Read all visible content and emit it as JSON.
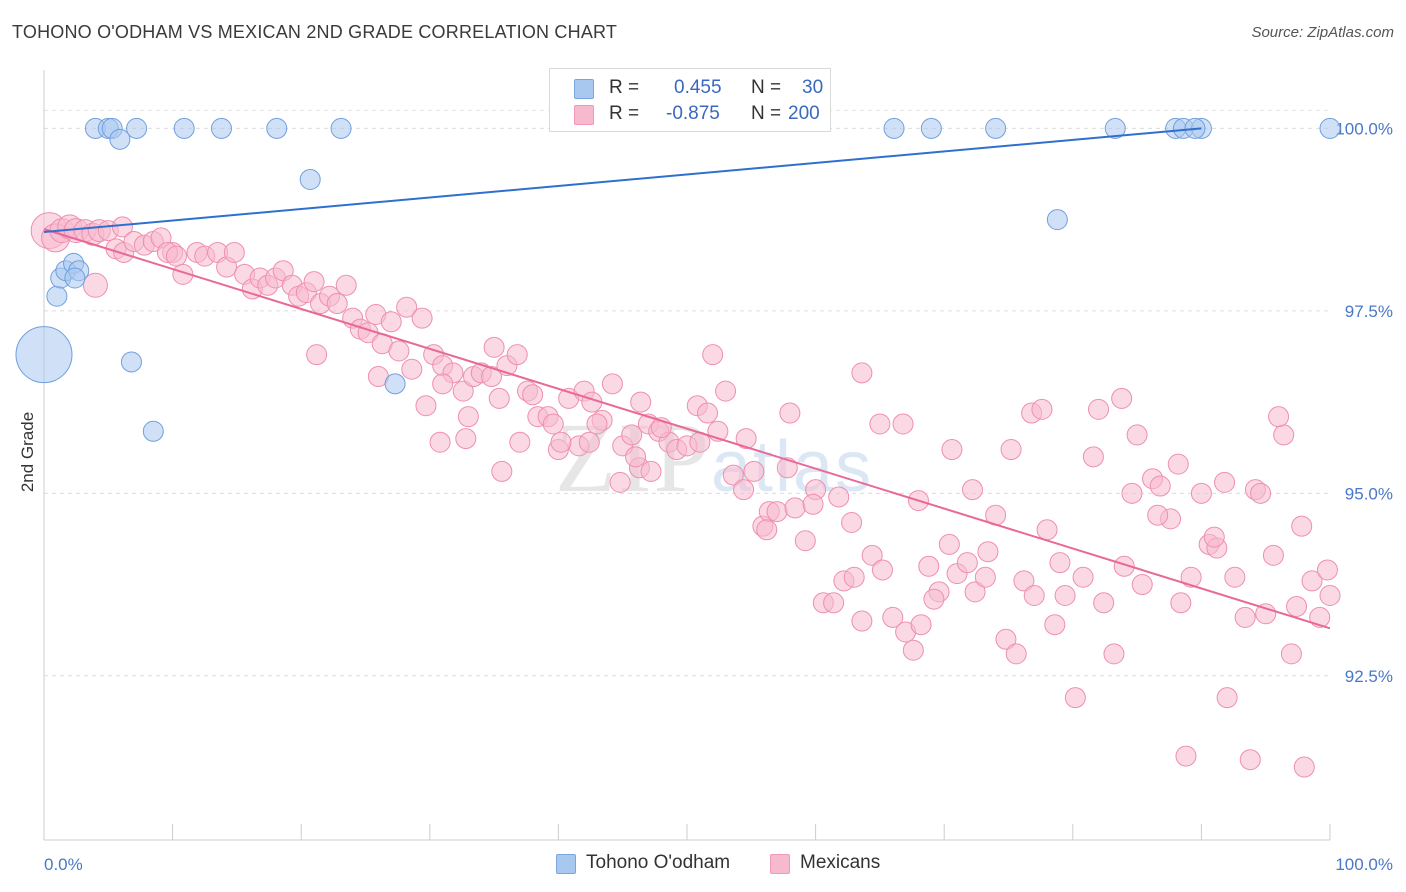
{
  "title": "TOHONO O'ODHAM VS MEXICAN 2ND GRADE CORRELATION CHART",
  "source": "Source: ZipAtlas.com",
  "watermark": {
    "zip": "ZIP",
    "atlas": "atlas"
  },
  "legend": {
    "rows": [
      {
        "r_label": "R =",
        "r_value": "0.455",
        "n_label": "N =",
        "n_value": "30",
        "color": "#a9c8f0"
      },
      {
        "r_label": "R =",
        "r_value": "-0.875",
        "n_label": "N =",
        "n_value": "200",
        "color": "#f7b9cd"
      }
    ]
  },
  "bottom_legend": [
    {
      "label": "Tohono O'odham",
      "color": "#a9c8f0"
    },
    {
      "label": "Mexicans",
      "color": "#f7b9cd"
    }
  ],
  "chart_data": {
    "type": "scatter",
    "title": "TOHONO O'ODHAM VS MEXICAN 2ND GRADE CORRELATION CHART",
    "xlabel": "",
    "ylabel": "2nd Grade",
    "xlim": [
      0,
      100
    ],
    "ylim": [
      90.25,
      100.8
    ],
    "x_tick_labels": [
      "0.0%",
      "100.0%"
    ],
    "y_ticks": [
      92.5,
      95.0,
      97.5,
      100.0
    ],
    "y_tick_labels": [
      "92.5%",
      "95.0%",
      "97.5%",
      "100.0%"
    ],
    "grid": true,
    "series": [
      {
        "name": "Tohono O'odham",
        "color": "#a9c8f0",
        "stroke": "#6f9fdd",
        "trend_color": "#2f6fce",
        "trend": {
          "x": [
            0,
            90
          ],
          "y": [
            98.58,
            100.0
          ]
        },
        "points": [
          [
            0.0,
            96.9,
            28
          ],
          [
            1.0,
            97.7,
            10
          ],
          [
            1.3,
            97.95,
            10
          ],
          [
            1.7,
            98.05,
            10
          ],
          [
            2.3,
            98.15,
            10
          ],
          [
            2.7,
            98.05,
            10
          ],
          [
            2.4,
            97.95,
            10
          ],
          [
            6.8,
            96.8,
            10
          ],
          [
            8.5,
            95.85,
            10
          ],
          [
            4.0,
            100.0,
            10
          ],
          [
            5.0,
            100.0,
            10
          ],
          [
            5.3,
            100.0,
            10
          ],
          [
            7.2,
            100.0,
            10
          ],
          [
            5.9,
            99.85,
            10
          ],
          [
            10.9,
            100.0,
            10
          ],
          [
            13.8,
            100.0,
            10
          ],
          [
            18.1,
            100.0,
            10
          ],
          [
            20.7,
            99.3,
            10
          ],
          [
            23.1,
            100.0,
            10
          ],
          [
            27.3,
            96.5,
            10
          ],
          [
            66.1,
            100.0,
            10
          ],
          [
            69.0,
            100.0,
            10
          ],
          [
            74.0,
            100.0,
            10
          ],
          [
            83.3,
            100.0,
            10
          ],
          [
            88.0,
            100.0,
            10
          ],
          [
            88.6,
            100.0,
            10
          ],
          [
            90.0,
            100.0,
            10
          ],
          [
            100.0,
            100.0,
            10
          ],
          [
            78.8,
            98.75,
            10
          ],
          [
            89.5,
            100.0,
            10
          ]
        ]
      },
      {
        "name": "Mexicans",
        "color": "#f7b9cd",
        "stroke": "#ee8fae",
        "trend_color": "#e8689a",
        "trend": {
          "x": [
            0,
            100
          ],
          "y": [
            98.62,
            93.15
          ]
        },
        "points": [
          [
            0.4,
            98.6,
            18
          ],
          [
            0.9,
            98.5,
            14
          ],
          [
            1.4,
            98.6,
            12
          ],
          [
            2.0,
            98.65,
            12
          ],
          [
            2.5,
            98.6,
            12
          ],
          [
            3.2,
            98.6,
            11
          ],
          [
            3.8,
            98.55,
            11
          ],
          [
            4.3,
            98.6,
            11
          ],
          [
            5.0,
            98.6,
            10
          ],
          [
            6.1,
            98.65,
            10
          ],
          [
            5.6,
            98.35,
            10
          ],
          [
            4.0,
            97.85,
            12
          ],
          [
            6.2,
            98.3,
            10
          ],
          [
            7.0,
            98.45,
            10
          ],
          [
            7.8,
            98.4,
            10
          ],
          [
            8.5,
            98.45,
            10
          ],
          [
            9.1,
            98.5,
            10
          ],
          [
            10.0,
            98.3,
            10
          ],
          [
            9.6,
            98.3,
            10
          ],
          [
            10.3,
            98.25,
            10
          ],
          [
            10.8,
            98.0,
            10
          ],
          [
            11.9,
            98.3,
            10
          ],
          [
            12.5,
            98.25,
            10
          ],
          [
            13.5,
            98.3,
            10
          ],
          [
            14.2,
            98.1,
            10
          ],
          [
            14.8,
            98.3,
            10
          ],
          [
            15.6,
            98.0,
            10
          ],
          [
            16.2,
            97.8,
            10
          ],
          [
            16.8,
            97.95,
            10
          ],
          [
            17.4,
            97.85,
            10
          ],
          [
            18.0,
            97.95,
            10
          ],
          [
            18.6,
            98.05,
            10
          ],
          [
            19.3,
            97.85,
            10
          ],
          [
            19.8,
            97.7,
            10
          ],
          [
            20.4,
            97.75,
            10
          ],
          [
            21.0,
            97.9,
            10
          ],
          [
            21.5,
            97.6,
            10
          ],
          [
            22.2,
            97.7,
            10
          ],
          [
            22.8,
            97.6,
            10
          ],
          [
            23.5,
            97.85,
            10
          ],
          [
            24.0,
            97.4,
            10
          ],
          [
            24.6,
            97.25,
            10
          ],
          [
            25.2,
            97.2,
            10
          ],
          [
            25.8,
            97.45,
            10
          ],
          [
            26.3,
            97.05,
            10
          ],
          [
            27.0,
            97.35,
            10
          ],
          [
            27.6,
            96.95,
            10
          ],
          [
            28.2,
            97.55,
            10
          ],
          [
            28.6,
            96.7,
            10
          ],
          [
            29.4,
            97.4,
            10
          ],
          [
            30.3,
            96.9,
            10
          ],
          [
            31.0,
            96.75,
            10
          ],
          [
            31.8,
            96.65,
            10
          ],
          [
            32.6,
            96.4,
            10
          ],
          [
            33.4,
            96.6,
            10
          ],
          [
            34.0,
            96.65,
            10
          ],
          [
            34.8,
            96.6,
            10
          ],
          [
            35.4,
            96.3,
            10
          ],
          [
            36.0,
            96.75,
            10
          ],
          [
            36.8,
            96.9,
            10
          ],
          [
            37.6,
            96.4,
            10
          ],
          [
            38.4,
            96.05,
            10
          ],
          [
            39.2,
            96.05,
            10
          ],
          [
            40.0,
            95.6,
            10
          ],
          [
            40.8,
            96.3,
            10
          ],
          [
            41.6,
            95.65,
            10
          ],
          [
            42.0,
            96.4,
            10
          ],
          [
            42.6,
            96.25,
            10
          ],
          [
            43.4,
            96.0,
            10
          ],
          [
            44.2,
            96.5,
            10
          ],
          [
            45.0,
            95.65,
            10
          ],
          [
            45.7,
            95.8,
            10
          ],
          [
            46.3,
            95.35,
            10
          ],
          [
            47.0,
            95.95,
            10
          ],
          [
            47.8,
            95.85,
            10
          ],
          [
            48.6,
            95.7,
            10
          ],
          [
            49.2,
            95.6,
            10
          ],
          [
            50.0,
            95.65,
            10
          ],
          [
            50.8,
            96.2,
            10
          ],
          [
            51.6,
            96.1,
            10
          ],
          [
            52.4,
            95.85,
            10
          ],
          [
            53.0,
            96.4,
            10
          ],
          [
            53.6,
            95.25,
            10
          ],
          [
            54.4,
            95.05,
            10
          ],
          [
            55.2,
            95.3,
            10
          ],
          [
            55.9,
            94.55,
            10
          ],
          [
            56.4,
            94.75,
            10
          ],
          [
            57.0,
            94.75,
            10
          ],
          [
            57.8,
            95.35,
            10
          ],
          [
            58.4,
            94.8,
            10
          ],
          [
            59.2,
            94.35,
            10
          ],
          [
            60.0,
            95.05,
            10
          ],
          [
            60.6,
            93.5,
            10
          ],
          [
            61.4,
            93.5,
            10
          ],
          [
            62.2,
            93.8,
            10
          ],
          [
            63.0,
            93.85,
            10
          ],
          [
            63.6,
            93.25,
            10
          ],
          [
            64.4,
            94.15,
            10
          ],
          [
            65.2,
            93.95,
            10
          ],
          [
            66.0,
            93.3,
            10
          ],
          [
            67.0,
            93.1,
            10
          ],
          [
            67.6,
            92.85,
            10
          ],
          [
            68.2,
            93.2,
            10
          ],
          [
            68.8,
            94.0,
            10
          ],
          [
            69.6,
            93.65,
            10
          ],
          [
            70.4,
            94.3,
            10
          ],
          [
            71.0,
            93.9,
            10
          ],
          [
            71.8,
            94.05,
            10
          ],
          [
            72.4,
            93.65,
            10
          ],
          [
            73.2,
            93.85,
            10
          ],
          [
            74.0,
            94.7,
            10
          ],
          [
            74.8,
            93.0,
            10
          ],
          [
            75.6,
            92.8,
            10
          ],
          [
            76.2,
            93.8,
            10
          ],
          [
            77.0,
            93.6,
            10
          ],
          [
            78.0,
            94.5,
            10
          ],
          [
            78.6,
            93.2,
            10
          ],
          [
            79.4,
            93.6,
            10
          ],
          [
            80.2,
            92.2,
            10
          ],
          [
            80.8,
            93.85,
            10
          ],
          [
            81.6,
            95.5,
            10
          ],
          [
            82.4,
            93.5,
            10
          ],
          [
            83.2,
            92.8,
            10
          ],
          [
            84.0,
            94.0,
            10
          ],
          [
            84.6,
            95.0,
            10
          ],
          [
            85.4,
            93.75,
            10
          ],
          [
            86.2,
            95.2,
            10
          ],
          [
            86.8,
            95.1,
            10
          ],
          [
            87.6,
            94.65,
            10
          ],
          [
            88.4,
            93.5,
            10
          ],
          [
            89.2,
            93.85,
            10
          ],
          [
            90.0,
            95.0,
            10
          ],
          [
            90.6,
            94.3,
            10
          ],
          [
            91.2,
            94.25,
            10
          ],
          [
            91.8,
            95.15,
            10
          ],
          [
            92.6,
            93.85,
            10
          ],
          [
            93.4,
            93.3,
            10
          ],
          [
            94.2,
            95.05,
            10
          ],
          [
            95.0,
            93.35,
            10
          ],
          [
            95.6,
            94.15,
            10
          ],
          [
            96.4,
            95.8,
            10
          ],
          [
            97.0,
            92.8,
            10
          ],
          [
            97.8,
            94.55,
            10
          ],
          [
            98.6,
            93.8,
            10
          ],
          [
            99.2,
            93.3,
            10
          ],
          [
            99.8,
            93.95,
            10
          ],
          [
            100.0,
            93.6,
            10
          ],
          [
            97.4,
            93.45,
            10
          ],
          [
            96.0,
            96.05,
            10
          ],
          [
            94.6,
            95.0,
            10
          ],
          [
            26.0,
            96.6,
            10
          ],
          [
            21.2,
            96.9,
            10
          ],
          [
            31.0,
            96.5,
            10
          ],
          [
            33.0,
            96.05,
            10
          ],
          [
            35.0,
            97.0,
            10
          ],
          [
            29.7,
            96.2,
            10
          ],
          [
            30.8,
            95.7,
            10
          ],
          [
            32.8,
            95.75,
            10
          ],
          [
            35.6,
            95.3,
            10
          ],
          [
            40.2,
            95.7,
            10
          ],
          [
            42.4,
            95.7,
            10
          ],
          [
            44.8,
            95.15,
            10
          ],
          [
            46.4,
            96.25,
            10
          ],
          [
            48.0,
            95.9,
            10
          ],
          [
            51.0,
            95.7,
            10
          ],
          [
            52.0,
            96.9,
            10
          ],
          [
            54.6,
            95.75,
            10
          ],
          [
            56.2,
            94.5,
            10
          ],
          [
            58.0,
            96.1,
            10
          ],
          [
            59.8,
            94.85,
            10
          ],
          [
            61.8,
            94.95,
            10
          ],
          [
            62.8,
            94.6,
            10
          ],
          [
            63.6,
            96.65,
            10
          ],
          [
            65.0,
            95.95,
            10
          ],
          [
            66.8,
            95.95,
            10
          ],
          [
            68.0,
            94.9,
            10
          ],
          [
            69.2,
            93.55,
            10
          ],
          [
            70.6,
            95.6,
            10
          ],
          [
            72.2,
            95.05,
            10
          ],
          [
            73.4,
            94.2,
            10
          ],
          [
            75.2,
            95.6,
            10
          ],
          [
            76.8,
            96.1,
            10
          ],
          [
            77.6,
            96.15,
            10
          ],
          [
            79.0,
            94.05,
            10
          ],
          [
            82.0,
            96.15,
            10
          ],
          [
            83.8,
            96.3,
            10
          ],
          [
            85.0,
            95.8,
            10
          ],
          [
            86.6,
            94.7,
            10
          ],
          [
            88.2,
            95.4,
            10
          ],
          [
            91.0,
            94.4,
            10
          ],
          [
            92.0,
            92.2,
            10
          ],
          [
            88.8,
            91.4,
            10
          ],
          [
            93.8,
            91.35,
            10
          ],
          [
            98.0,
            91.25,
            10
          ],
          [
            46.0,
            95.5,
            10
          ],
          [
            37.0,
            95.7,
            10
          ],
          [
            38.0,
            96.35,
            10
          ],
          [
            39.6,
            95.95,
            10
          ],
          [
            43.0,
            95.95,
            10
          ],
          [
            47.2,
            95.3,
            10
          ]
        ]
      }
    ]
  }
}
